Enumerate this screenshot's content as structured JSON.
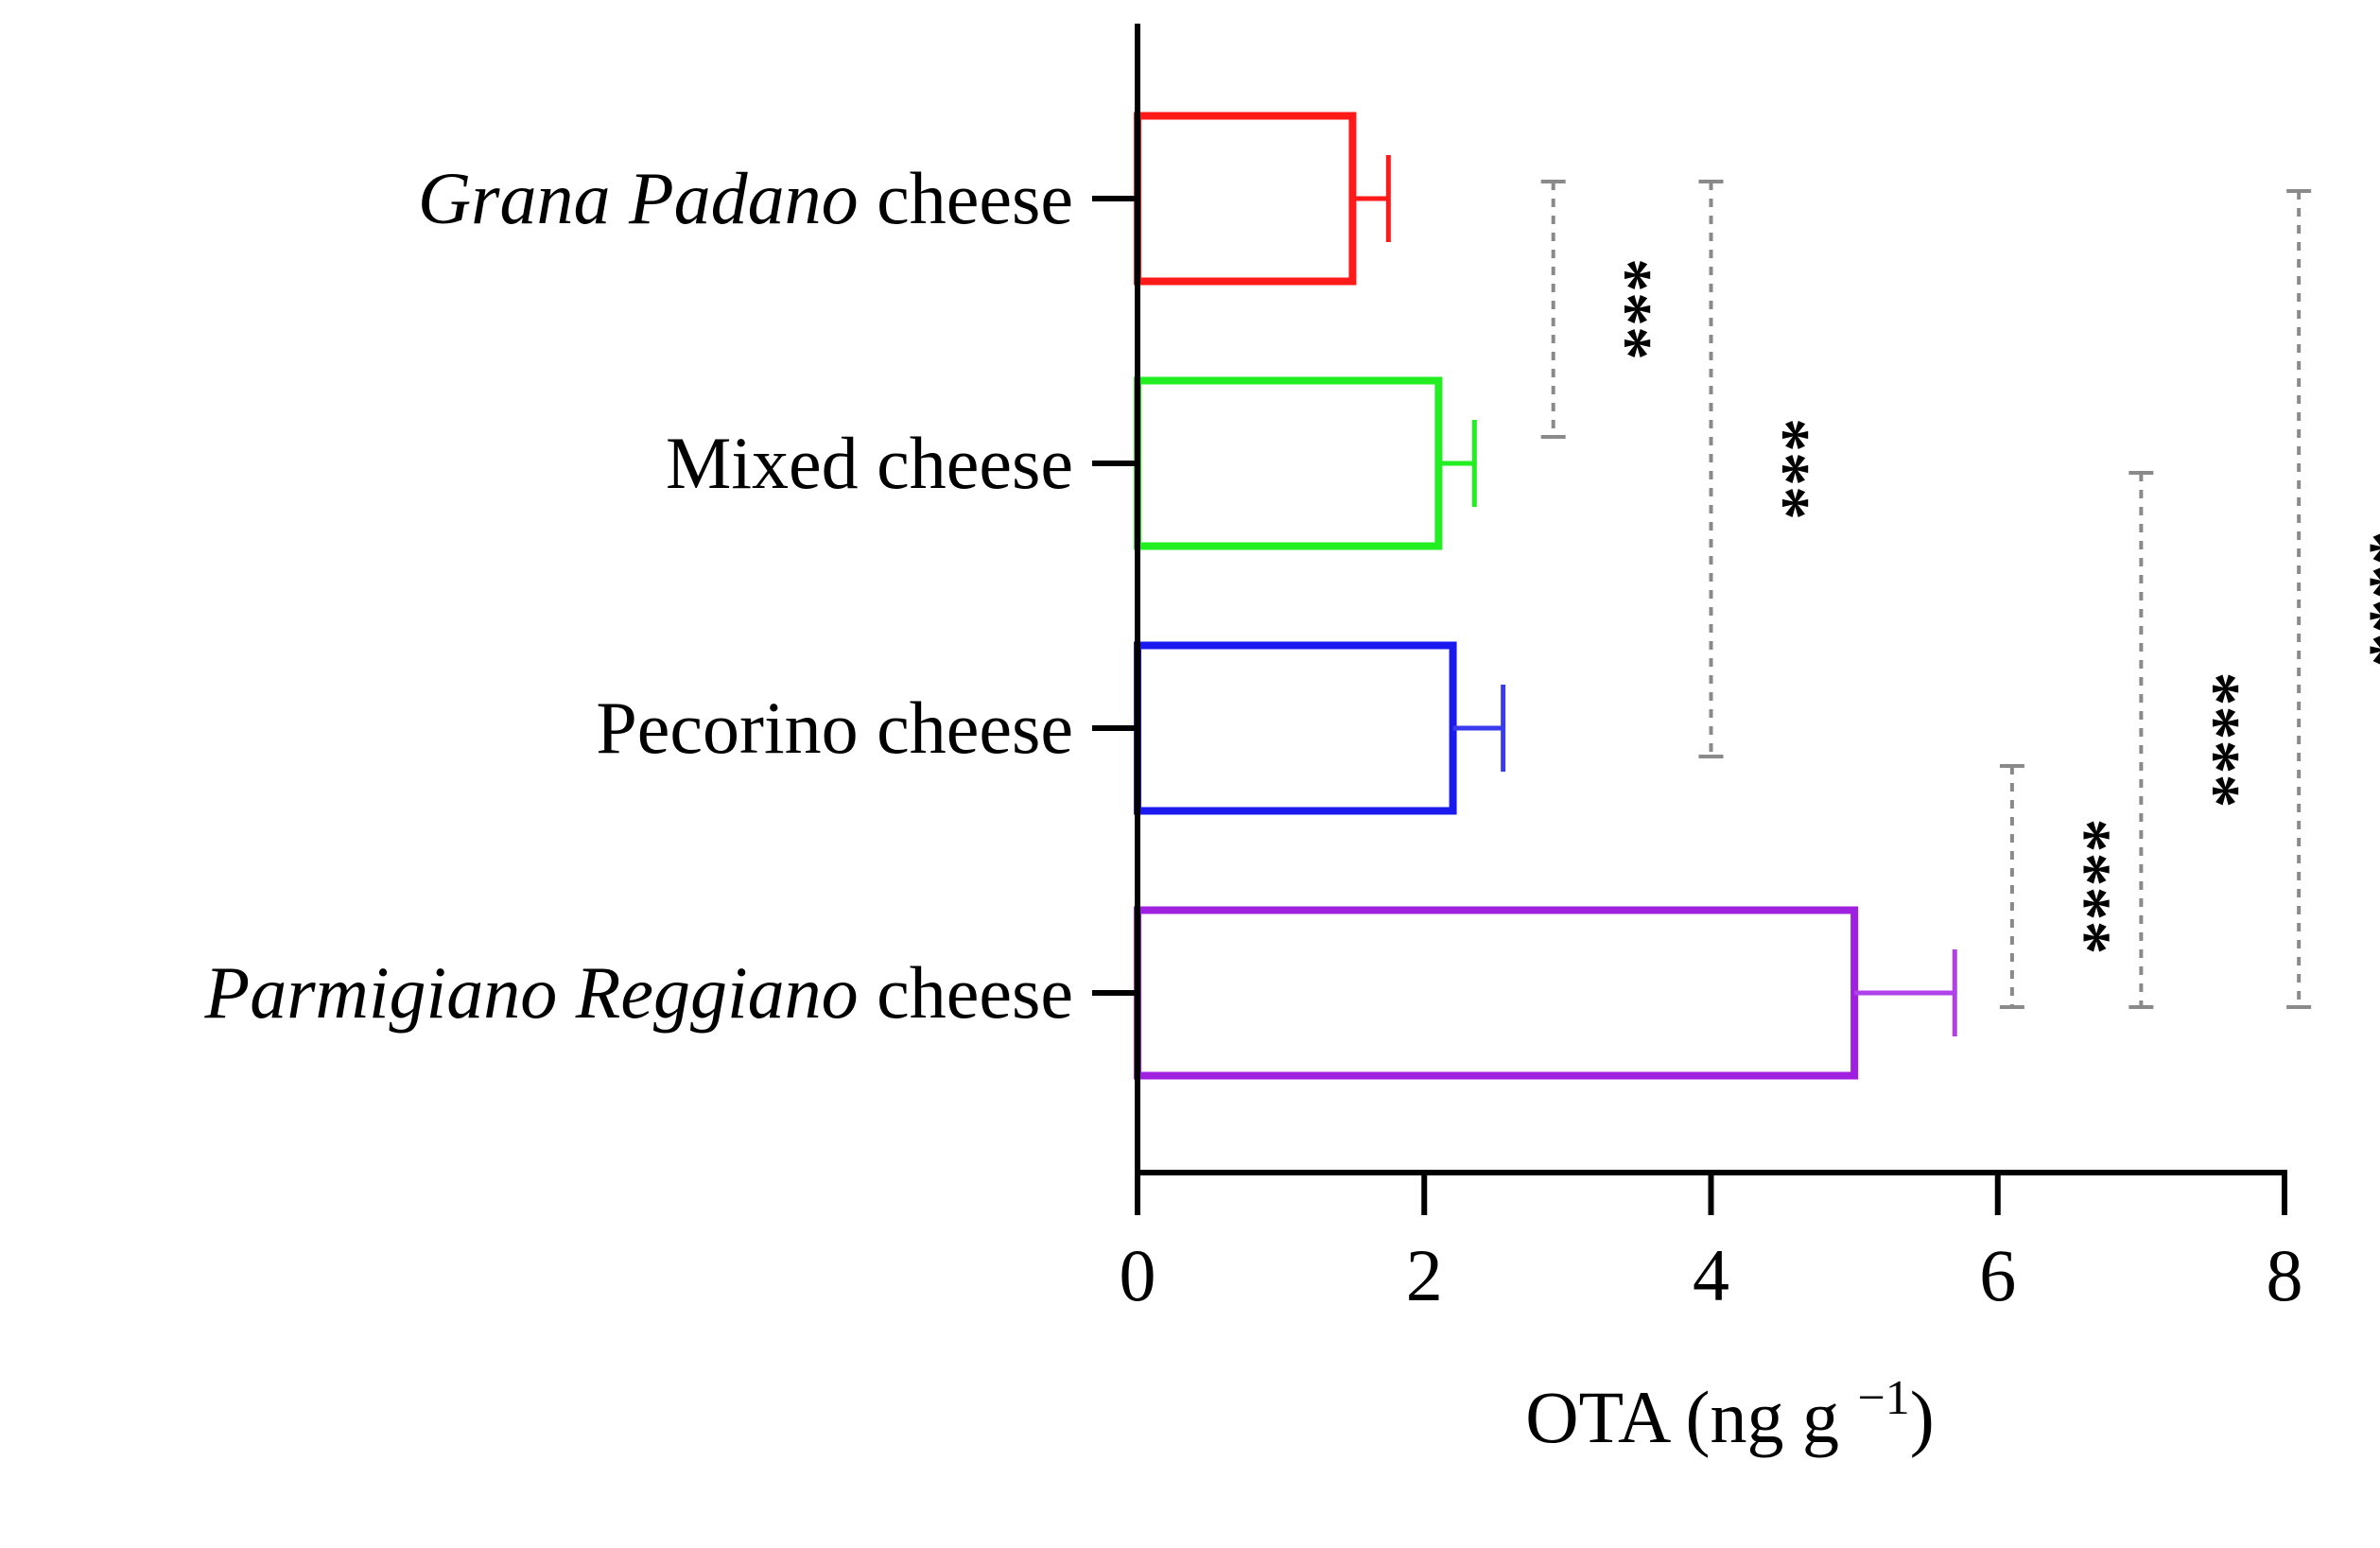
{
  "chart_data": {
    "type": "bar",
    "orientation": "horizontal",
    "categories": [
      {
        "prefix_italic": "Grana Padano",
        "suffix": " cheese",
        "full": "Grana Padano cheese"
      },
      {
        "prefix_italic": "",
        "suffix": "Mixed cheese",
        "full": "Mixed cheese"
      },
      {
        "prefix_italic": "",
        "suffix": "Pecorino cheese",
        "full": "Pecorino cheese"
      },
      {
        "prefix_italic": "Parmigiano Reggiano",
        "suffix": " cheese",
        "full": "Parmigiano Reggiano cheese"
      }
    ],
    "values": [
      1.5,
      2.1,
      2.2,
      5.0
    ],
    "errors": [
      0.25,
      0.25,
      0.35,
      0.7
    ],
    "colors": [
      "#ff1a1a",
      "#22ee22",
      "#1a1aee",
      "#a020e0"
    ],
    "error_colors": [
      "#ff1a1a",
      "#22ee22",
      "#3a3aee",
      "#b040e8"
    ],
    "xlim": [
      0,
      8
    ],
    "xticks": [
      "0",
      "2",
      "4",
      "6",
      "8"
    ],
    "xlabel": "OTA (ng g ",
    "xlabel_sup": "−1",
    "xlabel_close": ")",
    "significance": [
      {
        "from": 0,
        "to": 1,
        "x": 2.9,
        "label": "***"
      },
      {
        "from": 0,
        "to": 2,
        "x": 4.0,
        "label": "***"
      },
      {
        "from": 1,
        "to": 3,
        "x": 7.0,
        "label": "****"
      },
      {
        "from": 2,
        "to": 3,
        "x": 6.1,
        "label": "****"
      },
      {
        "from": 0,
        "to": 3,
        "x": 8.1,
        "label": "****"
      }
    ]
  }
}
